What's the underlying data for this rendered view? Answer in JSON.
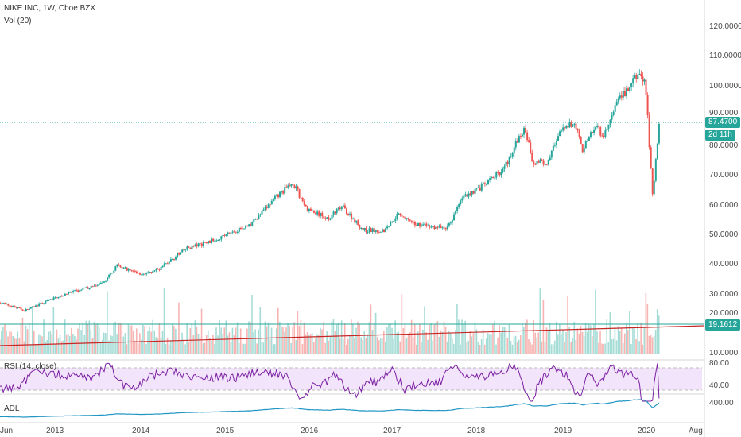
{
  "header": {
    "symbol_line": "NIKE INC, 1W, Cboe BZX",
    "volume_indicator": "Vol (20)"
  },
  "rsi_pane": {
    "label": "RSI (14, close)",
    "ticks": [
      "80.00",
      "40.00"
    ]
  },
  "adl_pane": {
    "label": "ADL",
    "ticks": [
      "400.00"
    ]
  },
  "price_scale": {
    "ticks": [
      "120.0000",
      "110.0000",
      "100.0000",
      "90.0000",
      "80.0000",
      "70.0000",
      "60.0000",
      "50.0000",
      "40.0000",
      "30.0000",
      "20.0000",
      "10.0000"
    ],
    "last_price_label": "87.4700",
    "countdown_label": "2d 11h",
    "volume_ma_label": "19.1612"
  },
  "time_axis": {
    "labels": [
      "Jun",
      "2013",
      "2014",
      "2015",
      "2016",
      "2017",
      "2018",
      "2019",
      "2020",
      "Aug"
    ]
  },
  "colors": {
    "up": "#26a69a",
    "down": "#ef5350",
    "price_line": "#26a69a",
    "rsi": "#7b1fa2",
    "adl": "#2196c4",
    "volume_ma": "#c62828"
  },
  "chart_data": {
    "type": "candlestick",
    "timeframe": "1W",
    "last_price": 87.47,
    "price_anchors": [
      [
        "2012-06",
        27
      ],
      [
        "2012-10",
        24
      ],
      [
        "2013-03",
        29
      ],
      [
        "2013-06",
        31
      ],
      [
        "2013-09",
        33
      ],
      [
        "2013-11",
        39
      ],
      [
        "2014-03",
        36
      ],
      [
        "2014-05",
        38
      ],
      [
        "2014-09",
        45
      ],
      [
        "2014-12",
        47
      ],
      [
        "2015-03",
        50
      ],
      [
        "2015-06",
        53
      ],
      [
        "2015-10",
        63
      ],
      [
        "2015-12",
        67
      ],
      [
        "2016-02",
        58
      ],
      [
        "2016-05",
        55
      ],
      [
        "2016-07",
        59
      ],
      [
        "2016-10",
        51
      ],
      [
        "2017-01",
        51
      ],
      [
        "2017-03",
        57
      ],
      [
        "2017-05",
        53
      ],
      [
        "2017-06",
        53
      ],
      [
        "2017-08",
        52
      ],
      [
        "2017-10",
        52
      ],
      [
        "2017-12",
        62
      ],
      [
        "2018-03",
        66
      ],
      [
        "2018-06",
        72
      ],
      [
        "2018-08",
        82
      ],
      [
        "2018-09",
        85
      ],
      [
        "2018-10",
        74
      ],
      [
        "2018-12",
        74
      ],
      [
        "2019-02",
        84
      ],
      [
        "2019-04",
        88
      ],
      [
        "2019-05",
        78
      ],
      [
        "2019-07",
        86
      ],
      [
        "2019-08",
        82
      ],
      [
        "2019-10",
        94
      ],
      [
        "2019-12",
        100
      ],
      [
        "2020-01",
        104
      ],
      [
        "2020-02",
        100
      ],
      [
        "2020-03",
        63
      ],
      [
        "2020-04",
        87.47
      ]
    ],
    "volume_ma_last": 19.1612
  }
}
